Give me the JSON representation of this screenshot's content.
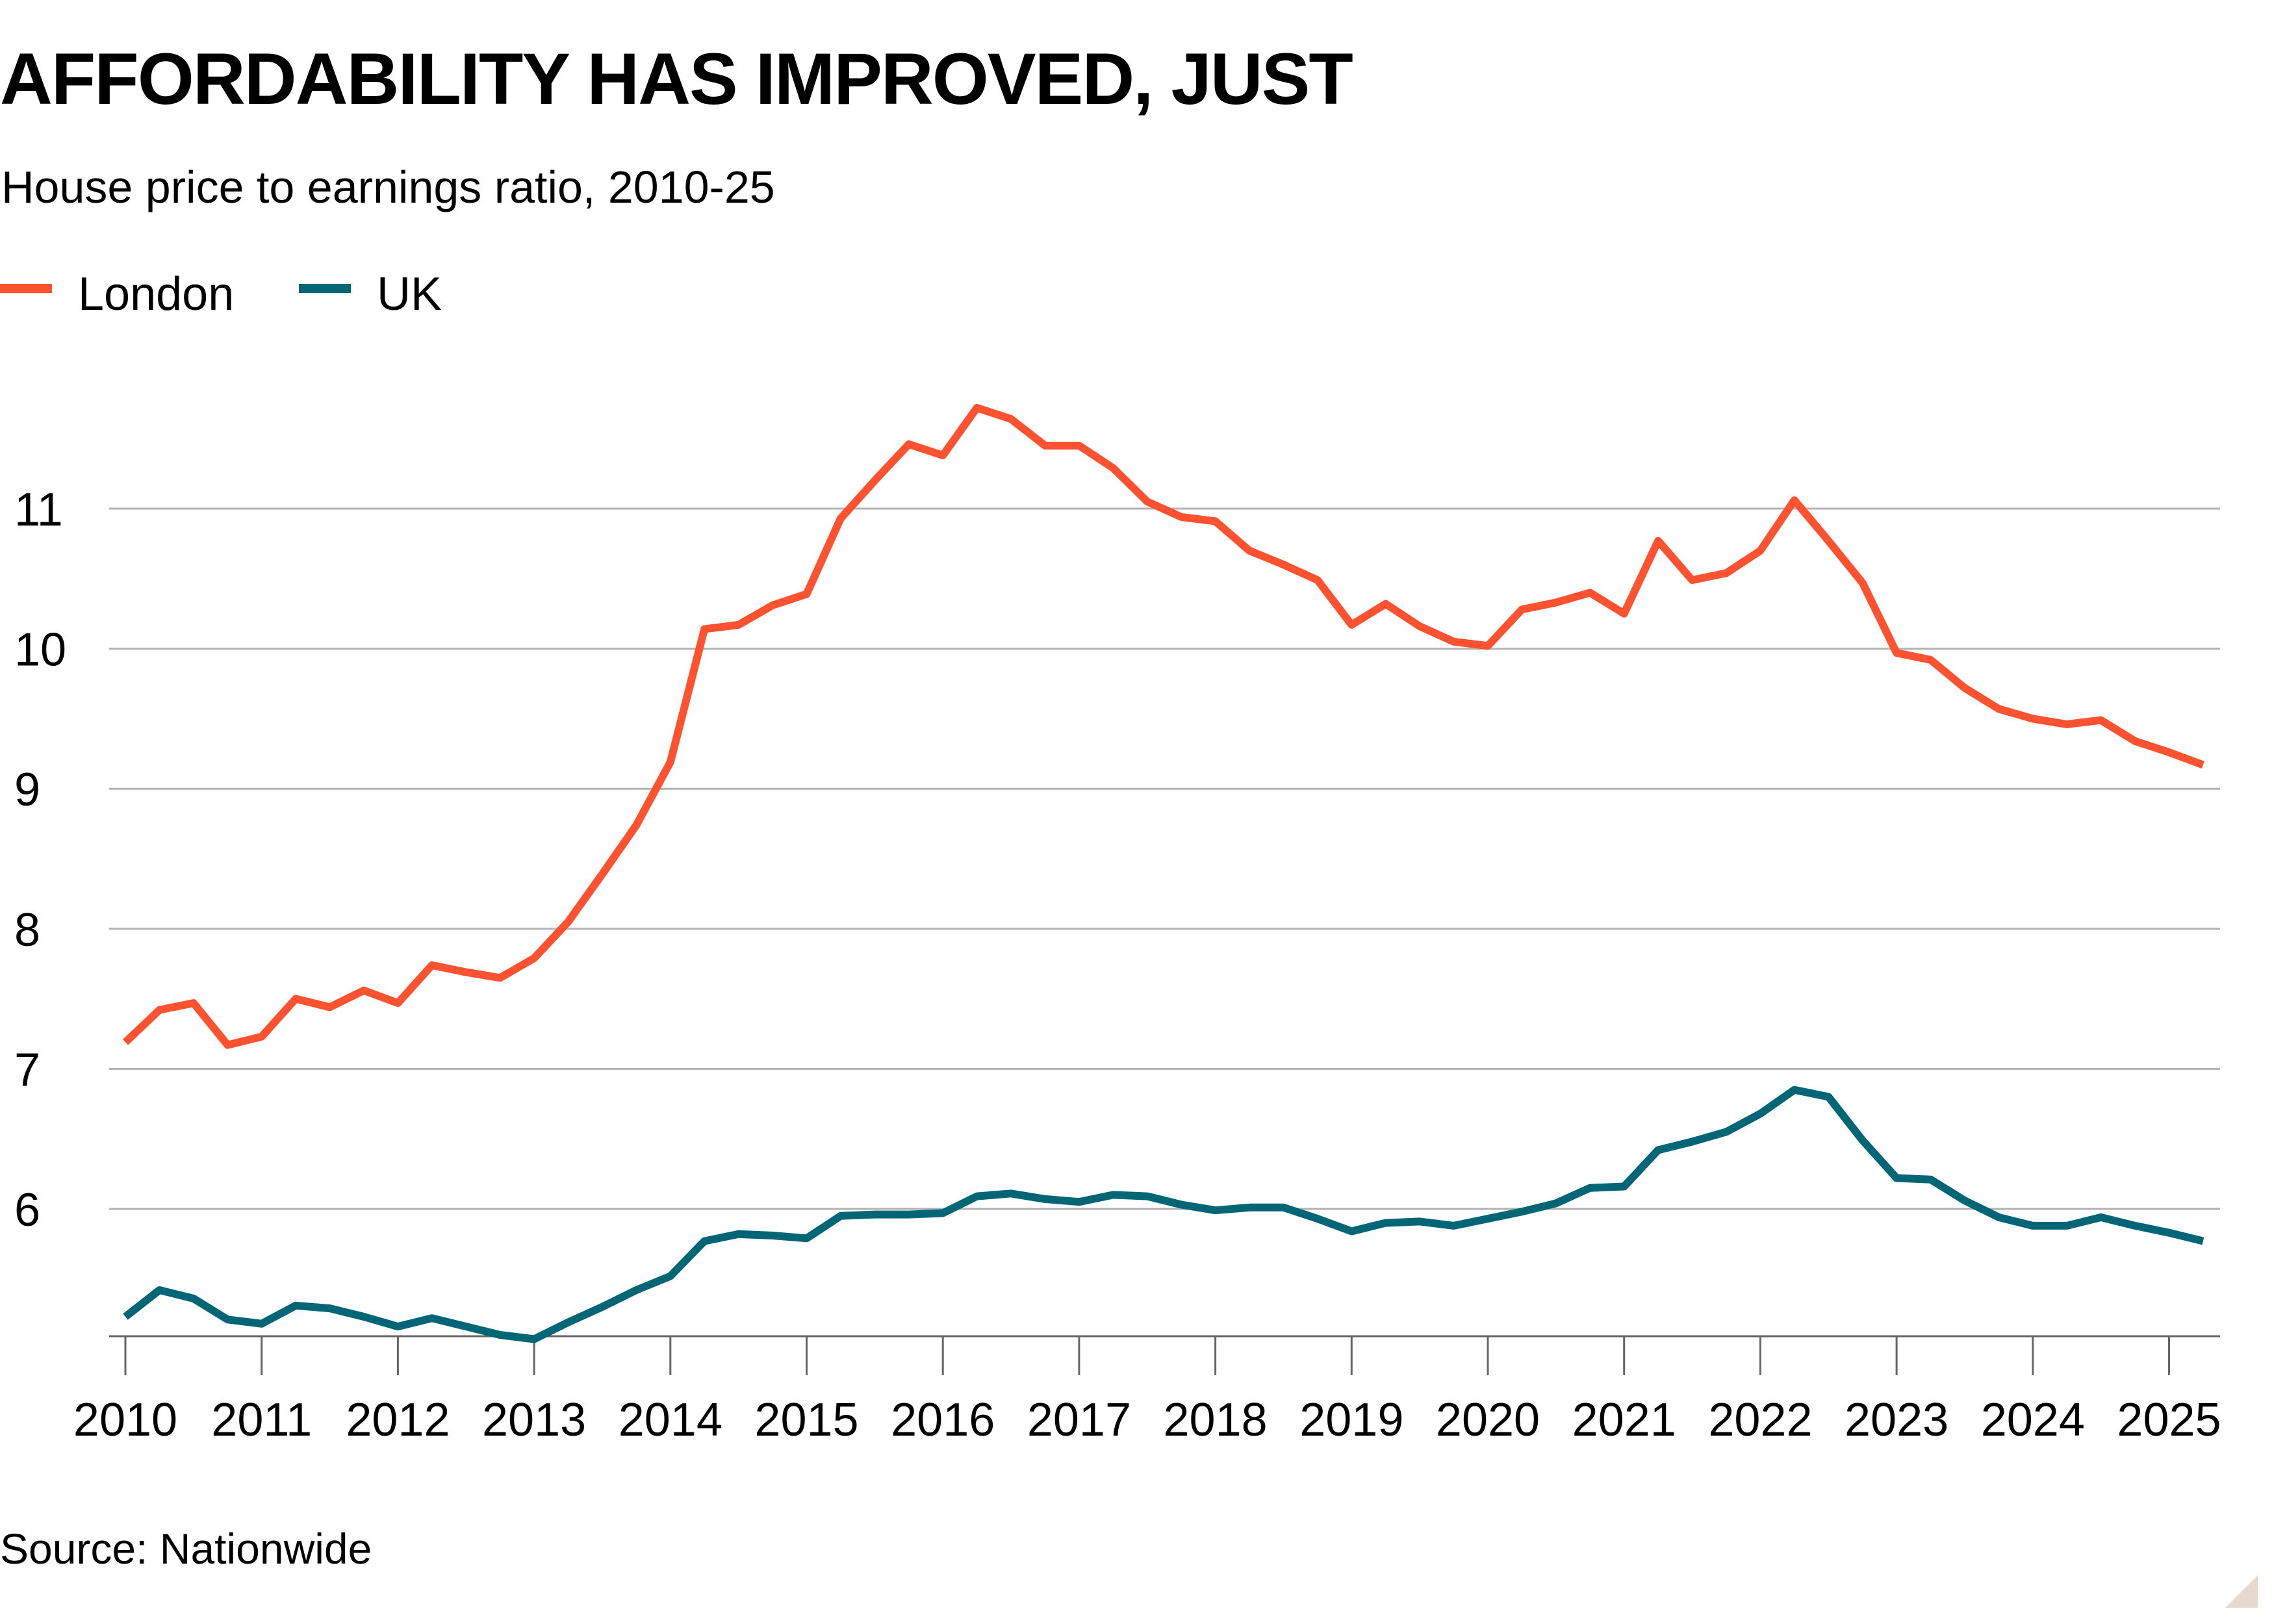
{
  "chart_data": {
    "type": "line",
    "title": "AFFORDABILITY HAS IMPROVED, JUST",
    "subtitle": "House price to earnings ratio, 2010-25",
    "source": "Source: Nationwide",
    "xlabel": "",
    "ylabel": "",
    "ylim": [
      5,
      11.8
    ],
    "xlim": [
      2010,
      2025.6
    ],
    "yticks": [
      6,
      7,
      8,
      9,
      10,
      11
    ],
    "xticks": [
      2010,
      2011,
      2012,
      2013,
      2014,
      2015,
      2016,
      2017,
      2018,
      2019,
      2020,
      2021,
      2022,
      2023,
      2024,
      2025
    ],
    "grid": "horizontal",
    "legend_placement": "top-left",
    "x_frequency": "quarterly",
    "x_start": 2010,
    "series": [
      {
        "name": "London",
        "color": "#FF5230",
        "values": [
          7.19,
          7.42,
          7.47,
          7.17,
          7.23,
          7.5,
          7.44,
          7.56,
          7.47,
          7.74,
          7.69,
          7.65,
          7.79,
          8.05,
          8.39,
          8.74,
          9.19,
          10.14,
          10.17,
          10.31,
          10.39,
          10.93,
          11.2,
          11.46,
          11.38,
          11.72,
          11.64,
          11.45,
          11.45,
          11.29,
          11.05,
          10.94,
          10.91,
          10.7,
          10.6,
          10.49,
          10.17,
          10.32,
          10.16,
          10.05,
          10.02,
          10.28,
          10.33,
          10.4,
          10.25,
          10.77,
          10.49,
          10.54,
          10.7,
          11.06,
          10.77,
          10.47,
          9.97,
          9.92,
          9.72,
          9.57,
          9.5,
          9.46,
          9.49,
          9.34,
          9.26,
          9.17
        ]
      },
      {
        "name": "UK",
        "color": "#006675",
        "values": [
          5.23,
          5.42,
          5.36,
          5.21,
          5.18,
          5.31,
          5.29,
          5.23,
          5.16,
          5.22,
          5.16,
          5.1,
          5.07,
          5.19,
          5.3,
          5.42,
          5.52,
          5.77,
          5.82,
          5.81,
          5.79,
          5.95,
          5.96,
          5.96,
          5.97,
          6.09,
          6.11,
          6.07,
          6.05,
          6.1,
          6.09,
          6.03,
          5.99,
          6.01,
          6.01,
          5.93,
          5.84,
          5.9,
          5.91,
          5.88,
          5.93,
          5.98,
          6.04,
          6.15,
          6.16,
          6.42,
          6.48,
          6.55,
          6.68,
          6.85,
          6.8,
          6.49,
          6.22,
          6.21,
          6.06,
          5.94,
          5.88,
          5.88,
          5.94,
          5.88,
          5.83,
          5.77
        ]
      }
    ]
  },
  "colors": {
    "grid": "#b3b3b3",
    "axis": "#666666",
    "corner": "#E6DAD0"
  }
}
